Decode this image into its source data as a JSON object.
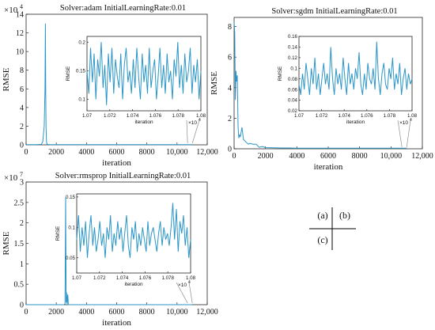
{
  "colors": {
    "line": "#2a96c8",
    "axis": "#262626",
    "zoom": "#8c8c8c"
  },
  "panel_labels": [
    "(a)",
    "(b)",
    "(c)"
  ],
  "chart_data": [
    {
      "type": "line",
      "title": "Solver:adam  InitialLearningRate:0.01",
      "xlabel": "iteration",
      "ylabel": "RMSE",
      "xlim": [
        0,
        12000
      ],
      "ylim": [
        0,
        14
      ],
      "y_exponent_label": "×10",
      "y_exponent_power": "4",
      "xticks": [
        0,
        2000,
        4000,
        6000,
        8000,
        10000,
        12000
      ],
      "xtick_labels": [
        "0",
        "2000",
        "4000",
        "6000",
        "8000",
        "10,000",
        "12,000"
      ],
      "yticks": [
        0,
        2,
        4,
        6,
        8,
        10,
        12,
        14
      ],
      "ytick_labels": [
        "0",
        "2",
        "4",
        "6",
        "8",
        "10",
        "12",
        "14"
      ],
      "x": [
        0,
        100,
        200,
        400,
        600,
        800,
        1000,
        1100,
        1200,
        1250,
        1280,
        1300,
        1320,
        1350,
        1400,
        1500,
        1700,
        2000,
        3000,
        4000,
        5000,
        6000,
        7000,
        8000,
        9000,
        10000,
        11000
      ],
      "y": [
        0.02,
        0.02,
        0.02,
        0.02,
        0.02,
        0.03,
        0.05,
        0.3,
        2.0,
        6.0,
        13.0,
        6.0,
        2.0,
        0.3,
        0.05,
        0.03,
        0.02,
        0.02,
        0.02,
        0.02,
        0.02,
        0.02,
        0.02,
        0.02,
        0.02,
        0.02,
        0.02
      ],
      "inset": {
        "xlabel": "iteration",
        "ylabel": "RMSE",
        "xlim": [
          1.07,
          1.08
        ],
        "ylim": [
          0.08,
          0.21
        ],
        "x_exponent_label": "×10",
        "x_exponent_power": "4",
        "xticks": [
          1.07,
          1.072,
          1.074,
          1.076,
          1.078,
          1.08
        ],
        "xtick_labels": [
          "1.07",
          "1.072",
          "1.074",
          "1.076",
          "1.078",
          "1.08"
        ],
        "yticks": [
          0.1,
          0.15,
          0.2
        ],
        "ytick_labels": [
          "0.1",
          "0.15",
          "0.2"
        ],
        "zoom_x": 10700,
        "values": [
          0.15,
          0.11,
          0.19,
          0.13,
          0.18,
          0.1,
          0.17,
          0.14,
          0.2,
          0.12,
          0.16,
          0.09,
          0.18,
          0.13,
          0.19,
          0.11,
          0.17,
          0.14,
          0.12,
          0.18,
          0.1,
          0.16,
          0.19,
          0.13,
          0.15,
          0.11,
          0.17,
          0.12,
          0.19,
          0.14,
          0.1,
          0.18,
          0.13,
          0.16,
          0.11,
          0.19,
          0.12,
          0.15,
          0.17,
          0.1,
          0.14,
          0.19,
          0.12,
          0.16,
          0.11,
          0.18,
          0.13,
          0.15,
          0.1,
          0.17,
          0.14,
          0.2,
          0.12,
          0.16,
          0.11,
          0.18,
          0.13,
          0.15,
          0.19,
          0.11,
          0.16,
          0.13,
          0.17,
          0.1,
          0.15
        ]
      }
    },
    {
      "type": "line",
      "title": "Solver:sgdm  InitialLearningRate:0.01",
      "xlabel": "iteration",
      "ylabel": "RMSE",
      "xlim": [
        0,
        12000
      ],
      "ylim": [
        0,
        8.6
      ],
      "xticks": [
        0,
        2000,
        4000,
        6000,
        8000,
        10000,
        12000
      ],
      "xtick_labels": [
        "0",
        "2000",
        "4000",
        "6000",
        "8000",
        "10,000",
        "12,000"
      ],
      "yticks": [
        0,
        2,
        4,
        6,
        8
      ],
      "ytick_labels": [
        "0",
        "2",
        "4",
        "6",
        "8"
      ],
      "x": [
        0,
        40,
        80,
        120,
        160,
        200,
        250,
        300,
        350,
        400,
        500,
        600,
        700,
        800,
        900,
        1000,
        1200,
        1400,
        1600,
        1800,
        2000,
        2500,
        3000,
        3500,
        4000,
        5000,
        6000,
        7000,
        8000,
        9000,
        10000,
        11000
      ],
      "y": [
        8.3,
        7.6,
        3.2,
        5.1,
        4.4,
        4.8,
        1.5,
        0.7,
        0.9,
        0.8,
        1.4,
        0.6,
        0.5,
        0.4,
        0.3,
        0.35,
        0.3,
        0.3,
        0.1,
        0.15,
        0.08,
        0.06,
        0.05,
        0.05,
        0.04,
        0.04,
        0.04,
        0.04,
        0.04,
        0.04,
        0.04,
        0.04
      ],
      "inset": {
        "xlabel": "iteration",
        "ylabel": "RMSE",
        "xlim": [
          1.07,
          1.08
        ],
        "ylim": [
          0.02,
          0.16
        ],
        "x_exponent_label": "×10",
        "x_exponent_power": "4",
        "xticks": [
          1.07,
          1.072,
          1.074,
          1.076,
          1.078,
          1.08
        ],
        "xtick_labels": [
          "1.07",
          "1.072",
          "1.074",
          "1.076",
          "1.078",
          "1.08"
        ],
        "yticks": [
          0.02,
          0.04,
          0.06,
          0.08,
          0.1,
          0.12,
          0.14,
          0.16
        ],
        "ytick_labels": [
          "0.02",
          "0.04",
          "0.06",
          "0.08",
          "0.1",
          "0.12",
          "0.14",
          "0.16"
        ],
        "zoom_x": 10700,
        "values": [
          0.07,
          0.05,
          0.09,
          0.06,
          0.11,
          0.08,
          0.05,
          0.1,
          0.07,
          0.12,
          0.06,
          0.09,
          0.05,
          0.08,
          0.11,
          0.07,
          0.09,
          0.06,
          0.14,
          0.08,
          0.05,
          0.1,
          0.07,
          0.09,
          0.06,
          0.12,
          0.08,
          0.05,
          0.11,
          0.07,
          0.09,
          0.06,
          0.1,
          0.08,
          0.13,
          0.07,
          0.05,
          0.09,
          0.06,
          0.11,
          0.08,
          0.07,
          0.1,
          0.06,
          0.15,
          0.08,
          0.05,
          0.09,
          0.11,
          0.07,
          0.06,
          0.1,
          0.08,
          0.12,
          0.06,
          0.09,
          0.07,
          0.11,
          0.05,
          0.08,
          0.1,
          0.06,
          0.09,
          0.07,
          0.08
        ]
      }
    },
    {
      "type": "line",
      "title": "Solver:rmsprop InitialLearningRate:0.01",
      "xlabel": "iteration",
      "ylabel": "RMSE",
      "xlim": [
        0,
        12000
      ],
      "ylim": [
        0,
        3
      ],
      "y_exponent_label": "×10",
      "y_exponent_power": "7",
      "xticks": [
        0,
        2000,
        4000,
        6000,
        8000,
        10000,
        12000
      ],
      "xtick_labels": [
        "0",
        "2000",
        "4000",
        "6000",
        "8000",
        "10,000",
        "12,000"
      ],
      "yticks": [
        0,
        0.5,
        1,
        1.5,
        2,
        2.5,
        3
      ],
      "ytick_labels": [
        "0",
        "0.5",
        "1",
        "1.5",
        "2",
        "2.5",
        "3"
      ],
      "x": [
        0,
        500,
        1000,
        2000,
        2500,
        2580,
        2620,
        2650,
        2680,
        2720,
        2760,
        2800,
        3000,
        4000,
        6000,
        8000,
        10000,
        11000
      ],
      "y": [
        0.0,
        0.0,
        0.0,
        0.0,
        0.0,
        0.02,
        2.62,
        0.05,
        0.3,
        0.02,
        0.25,
        0.0,
        0.0,
        0.0,
        0.0,
        0.0,
        0.0,
        0.0
      ],
      "inset": {
        "xlabel": "iteration",
        "ylabel": "RMSE",
        "xlim": [
          1.07,
          1.08
        ],
        "ylim": [
          0.025,
          0.155
        ],
        "x_exponent_label": "×10",
        "x_exponent_power": "4",
        "xticks": [
          1.07,
          1.072,
          1.074,
          1.076,
          1.078,
          1.08
        ],
        "xtick_labels": [
          "1.07",
          "1.072",
          "1.074",
          "1.076",
          "1.078",
          "1.08"
        ],
        "yticks": [
          0.05,
          0.1,
          0.15
        ],
        "ytick_labels": [
          "0.05",
          "0.1",
          "0.15"
        ],
        "zoom_x": 10700,
        "values": [
          0.08,
          0.12,
          0.06,
          0.1,
          0.07,
          0.11,
          0.05,
          0.09,
          0.12,
          0.07,
          0.1,
          0.06,
          0.08,
          0.11,
          0.07,
          0.09,
          0.05,
          0.1,
          0.08,
          0.12,
          0.06,
          0.09,
          0.07,
          0.11,
          0.08,
          0.1,
          0.06,
          0.09,
          0.12,
          0.07,
          0.05,
          0.1,
          0.08,
          0.11,
          0.06,
          0.09,
          0.07,
          0.1,
          0.08,
          0.06,
          0.11,
          0.07,
          0.09,
          0.1,
          0.08,
          0.06,
          0.09,
          0.11,
          0.07,
          0.1,
          0.08,
          0.09,
          0.07,
          0.1,
          0.14,
          0.08,
          0.13,
          0.06,
          0.11,
          0.09,
          0.12,
          0.07,
          0.1,
          0.05,
          0.08
        ]
      }
    }
  ]
}
